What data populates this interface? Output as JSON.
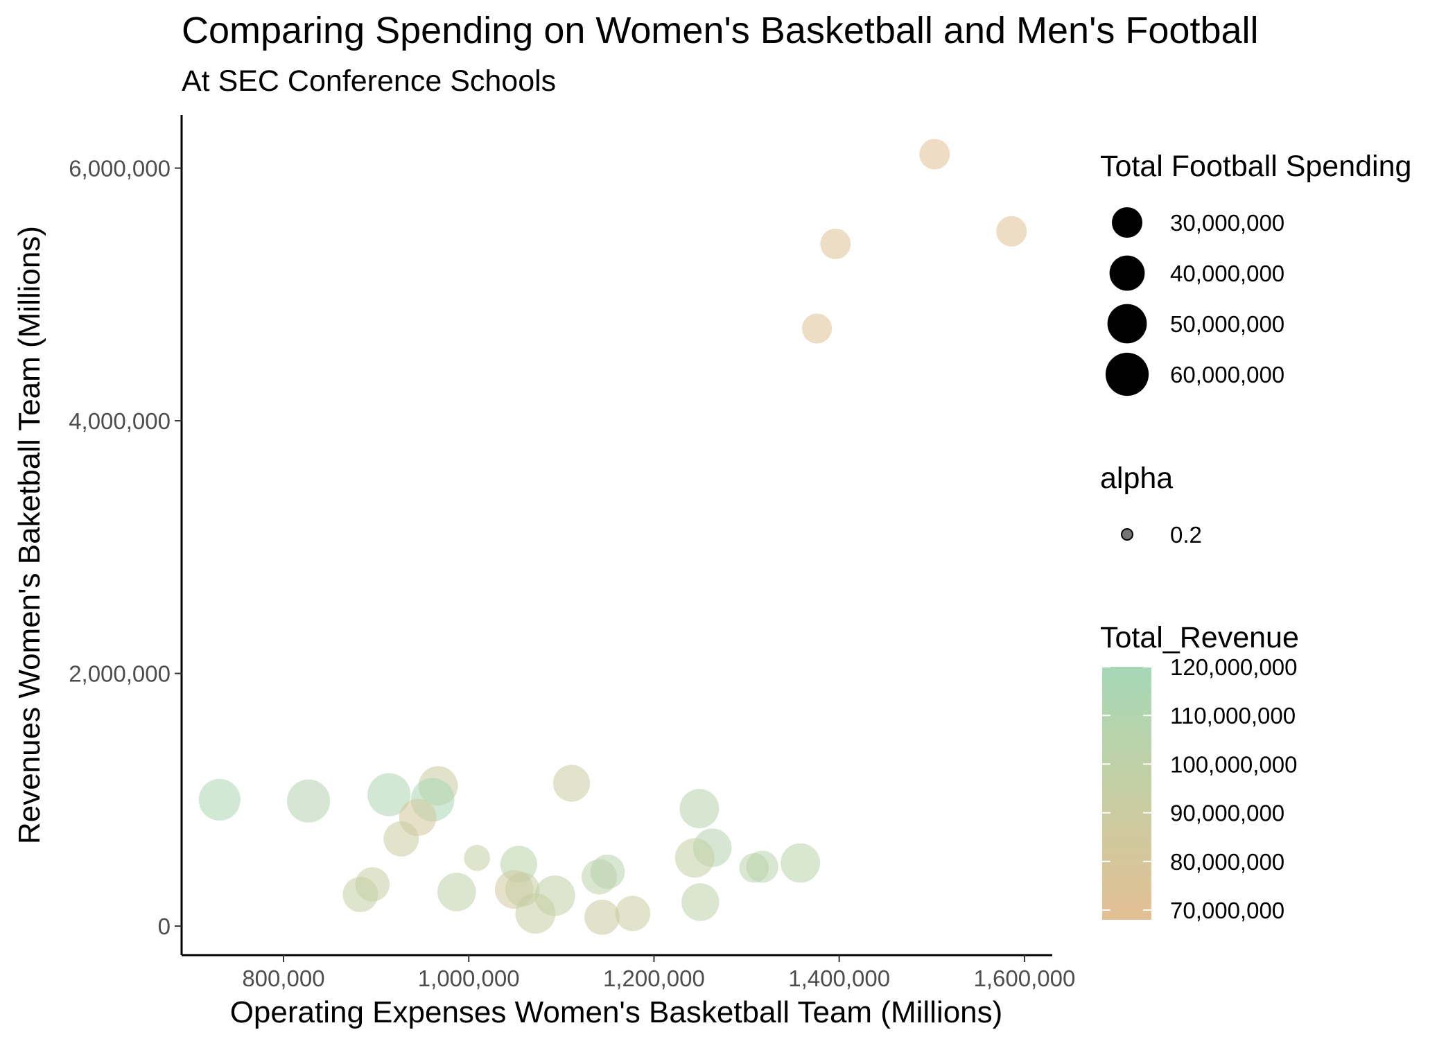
{
  "chart_data": {
    "type": "scatter",
    "title": "Comparing Spending on Women's Basketball and Men's Football",
    "subtitle": "At SEC Conference Schools",
    "xlabel": "Operating Expenses Women's Basketball Team (Millions)",
    "ylabel": "Revenues Women's Baketball Team (Millions)",
    "xlim": [
      690000,
      1630000
    ],
    "ylim": [
      -230000,
      6420000
    ],
    "x_ticks": [
      800000,
      1000000,
      1200000,
      1400000,
      1600000
    ],
    "x_tick_labels": [
      "800,000",
      "1,000,000",
      "1,200,000",
      "1,400,000",
      "1,600,000"
    ],
    "y_ticks": [
      0,
      2000000,
      4000000,
      6000000
    ],
    "y_tick_labels": [
      "0",
      "2,000,000",
      "4,000,000",
      "6,000,000"
    ],
    "grid": false,
    "legend_position": "right",
    "size_legend": {
      "title": "Total Football Spending",
      "breaks": [
        30000000,
        40000000,
        50000000,
        60000000
      ],
      "labels": [
        "30,000,000",
        "40,000,000",
        "50,000,000",
        "60,000,000"
      ]
    },
    "alpha_legend": {
      "title": "alpha",
      "labels": [
        "0.2"
      ]
    },
    "color_legend": {
      "title": "Total_Revenue",
      "breaks": [
        120000000,
        110000000,
        100000000,
        90000000,
        80000000,
        70000000
      ],
      "labels": [
        "120,000,000",
        "110,000,000",
        "100,000,000",
        "90,000,000",
        "80,000,000",
        "70,000,000"
      ],
      "low_color": "#e3bf94",
      "mid_color": "#c3cfa4",
      "high_color": "#a5d8b7",
      "range": [
        68000000,
        120000000
      ]
    },
    "points": [
      {
        "x": 1503000,
        "y": 6110000,
        "football_spending": 30000000,
        "total_revenue": 70000000
      },
      {
        "x": 1586000,
        "y": 5500000,
        "football_spending": 30000000,
        "total_revenue": 71000000
      },
      {
        "x": 1396000,
        "y": 5400000,
        "football_spending": 30000000,
        "total_revenue": 72000000
      },
      {
        "x": 1376000,
        "y": 4730000,
        "football_spending": 29000000,
        "total_revenue": 71000000
      },
      {
        "x": 731000,
        "y": 1000000,
        "football_spending": 56000000,
        "total_revenue": 115000000
      },
      {
        "x": 827000,
        "y": 990000,
        "football_spending": 60000000,
        "total_revenue": 110000000
      },
      {
        "x": 914000,
        "y": 1040000,
        "football_spending": 60000000,
        "total_revenue": 112000000
      },
      {
        "x": 967000,
        "y": 1110000,
        "football_spending": 50000000,
        "total_revenue": 90000000
      },
      {
        "x": 961000,
        "y": 1000000,
        "football_spending": 61000000,
        "total_revenue": 118000000
      },
      {
        "x": 945000,
        "y": 860000,
        "football_spending": 45000000,
        "total_revenue": 82000000
      },
      {
        "x": 927000,
        "y": 690000,
        "football_spending": 40000000,
        "total_revenue": 92000000
      },
      {
        "x": 1111000,
        "y": 1130000,
        "football_spending": 44000000,
        "total_revenue": 92000000
      },
      {
        "x": 1249000,
        "y": 930000,
        "football_spending": 50000000,
        "total_revenue": 105000000
      },
      {
        "x": 1263000,
        "y": 620000,
        "football_spending": 48000000,
        "total_revenue": 110000000
      },
      {
        "x": 1244000,
        "y": 540000,
        "football_spending": 50000000,
        "total_revenue": 96000000
      },
      {
        "x": 1358000,
        "y": 500000,
        "football_spending": 50000000,
        "total_revenue": 104000000
      },
      {
        "x": 1308000,
        "y": 460000,
        "football_spending": 28000000,
        "total_revenue": 102000000
      },
      {
        "x": 1317000,
        "y": 470000,
        "football_spending": 33000000,
        "total_revenue": 106000000
      },
      {
        "x": 1054000,
        "y": 490000,
        "football_spending": 44000000,
        "total_revenue": 104000000
      },
      {
        "x": 1009000,
        "y": 540000,
        "football_spending": 22000000,
        "total_revenue": 95000000
      },
      {
        "x": 1150000,
        "y": 430000,
        "football_spending": 38000000,
        "total_revenue": 108000000
      },
      {
        "x": 1141000,
        "y": 390000,
        "football_spending": 40000000,
        "total_revenue": 103000000
      },
      {
        "x": 896000,
        "y": 330000,
        "football_spending": 38000000,
        "total_revenue": 93000000
      },
      {
        "x": 883000,
        "y": 250000,
        "football_spending": 40000000,
        "total_revenue": 95000000
      },
      {
        "x": 987000,
        "y": 270000,
        "football_spending": 48000000,
        "total_revenue": 100000000
      },
      {
        "x": 1049000,
        "y": 290000,
        "football_spending": 48000000,
        "total_revenue": 85000000
      },
      {
        "x": 1058000,
        "y": 290000,
        "football_spending": 38000000,
        "total_revenue": 94000000
      },
      {
        "x": 1093000,
        "y": 240000,
        "football_spending": 53000000,
        "total_revenue": 98000000
      },
      {
        "x": 1072000,
        "y": 100000,
        "football_spending": 52000000,
        "total_revenue": 93000000
      },
      {
        "x": 1250000,
        "y": 190000,
        "football_spending": 46000000,
        "total_revenue": 103000000
      },
      {
        "x": 1144000,
        "y": 70000,
        "football_spending": 40000000,
        "total_revenue": 90000000
      },
      {
        "x": 1177000,
        "y": 100000,
        "football_spending": 40000000,
        "total_revenue": 92000000
      }
    ]
  }
}
